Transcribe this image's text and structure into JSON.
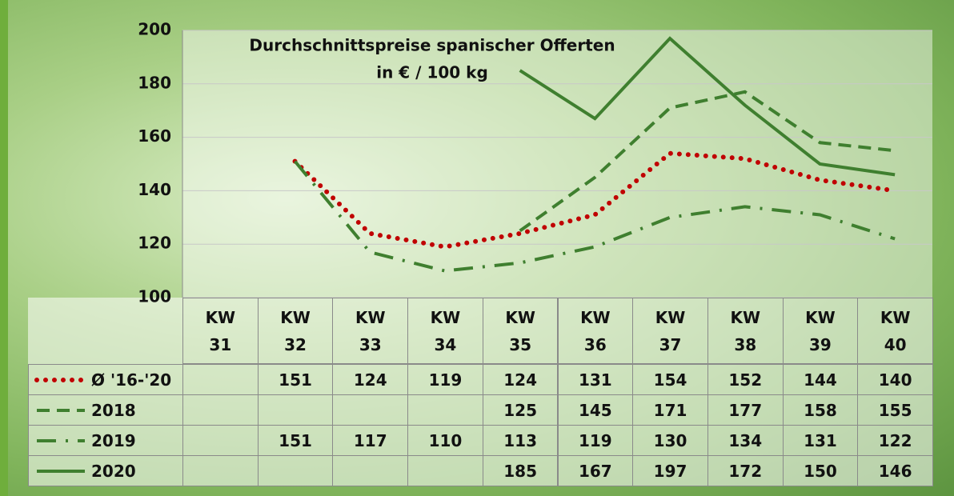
{
  "chart_data": {
    "type": "line",
    "title": "Durchschnittspreise spanischer Offerten",
    "subtitle": "in € / 100 kg",
    "categories": [
      "KW 31",
      "KW 32",
      "KW 33",
      "KW 34",
      "KW 35",
      "KW 36",
      "KW 37",
      "KW 38",
      "KW 39",
      "KW 40"
    ],
    "series": [
      {
        "name": "Ø '16-'20",
        "color": "#c00000",
        "line_style": "dotted",
        "values": [
          null,
          151,
          124,
          119,
          124,
          131,
          154,
          152,
          144,
          140
        ]
      },
      {
        "name": "2018",
        "color": "#3f7f2f",
        "line_style": "dashed",
        "values": [
          null,
          null,
          null,
          null,
          125,
          145,
          171,
          177,
          158,
          155
        ]
      },
      {
        "name": "2019",
        "color": "#3f7f2f",
        "line_style": "dashdot",
        "values": [
          null,
          151,
          117,
          110,
          113,
          119,
          130,
          134,
          131,
          122
        ]
      },
      {
        "name": "2020",
        "color": "#3f7f2f",
        "line_style": "solid",
        "values": [
          null,
          null,
          null,
          null,
          185,
          167,
          197,
          172,
          150,
          146
        ]
      }
    ],
    "ylim": [
      100,
      200
    ],
    "yticks": [
      100,
      120,
      140,
      160,
      180,
      200
    ],
    "grid": true,
    "data_table": true
  }
}
